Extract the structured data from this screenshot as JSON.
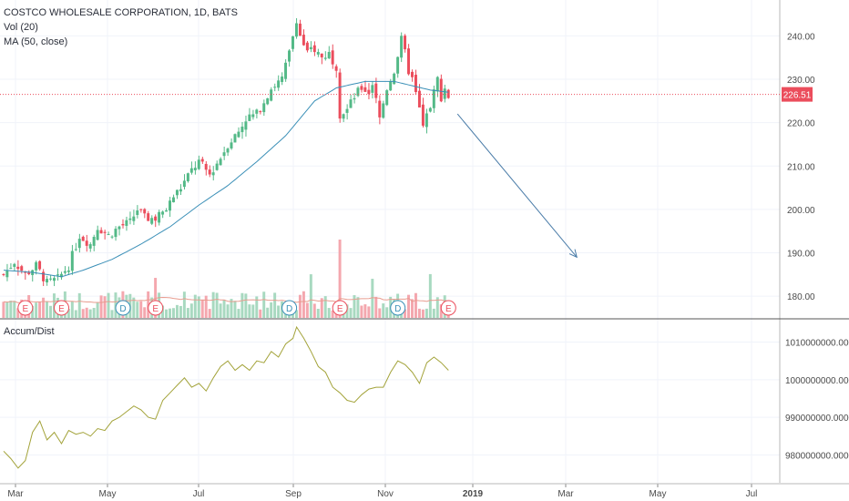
{
  "legend": {
    "title": "COSTCO WHOLESALE CORPORATION, 1D, BATS",
    "volume": "Vol (20)",
    "ma": "MA (50, close)"
  },
  "indicator": {
    "title": "Accum/Dist"
  },
  "last_price_label": "226.51",
  "colors": {
    "up": "#53b987",
    "down": "#eb4d5c",
    "vol_up": "#a8d9c0",
    "vol_down": "#f4a7ae",
    "ma": "#3a8fb7",
    "vol_ma": "#e89c8f",
    "ad_line": "#a3a33a",
    "price_line": "#eb4d5c",
    "arrow": "#4a7ca8",
    "grid": "#f0f3fa",
    "divider": "#555555"
  },
  "chart_data": [
    {
      "type": "candlestick",
      "title": "COSTCO WHOLESALE CORPORATION, 1D, BATS",
      "price_axis": {
        "range": [
          175,
          247
        ],
        "ticks": [
          "180.00",
          "190.00",
          "200.00",
          "210.00",
          "220.00",
          "230.00",
          "240.00"
        ]
      },
      "time_axis": {
        "labels": [
          "Mar",
          "May",
          "Jul",
          "Sep",
          "Nov",
          "2019",
          "Mar",
          "May",
          "Jul"
        ]
      },
      "last_price": 226.51,
      "close_path": [
        [
          0,
          185
        ],
        [
          3,
          188
        ],
        [
          6,
          185
        ],
        [
          9,
          187
        ],
        [
          12,
          183
        ],
        [
          15,
          184
        ],
        [
          18,
          187
        ],
        [
          21,
          194
        ],
        [
          24,
          192
        ],
        [
          26,
          196
        ],
        [
          29,
          194
        ],
        [
          32,
          196
        ],
        [
          35,
          197
        ],
        [
          37,
          200
        ],
        [
          39,
          198
        ],
        [
          42,
          198
        ],
        [
          45,
          200
        ],
        [
          47,
          203
        ],
        [
          49,
          205
        ],
        [
          52,
          209
        ],
        [
          54,
          211
        ],
        [
          57,
          208
        ],
        [
          60,
          212
        ],
        [
          62,
          215
        ],
        [
          65,
          218
        ],
        [
          67,
          221
        ],
        [
          70,
          222
        ],
        [
          72,
          225
        ],
        [
          74,
          228
        ],
        [
          77,
          230
        ],
        [
          79,
          236
        ],
        [
          80,
          240
        ],
        [
          81,
          244
        ],
        [
          82,
          240
        ],
        [
          84,
          236
        ],
        [
          86,
          237
        ],
        [
          88,
          235
        ],
        [
          90,
          236
        ],
        [
          92,
          233
        ],
        [
          93,
          222
        ],
        [
          95,
          223
        ],
        [
          97,
          226
        ],
        [
          99,
          228
        ],
        [
          101,
          227
        ],
        [
          102,
          229
        ],
        [
          104,
          221
        ],
        [
          106,
          228
        ],
        [
          108,
          232
        ],
        [
          110,
          239
        ],
        [
          111,
          236
        ],
        [
          112,
          232
        ],
        [
          113,
          230
        ],
        [
          115,
          223
        ],
        [
          116,
          219
        ],
        [
          118,
          224
        ],
        [
          120,
          230
        ],
        [
          121,
          226
        ],
        [
          122,
          228
        ],
        [
          123,
          226
        ]
      ],
      "ma50_path": [
        [
          0,
          186
        ],
        [
          8,
          185.5
        ],
        [
          16,
          184.5
        ],
        [
          22,
          186
        ],
        [
          30,
          188.5
        ],
        [
          38,
          192
        ],
        [
          46,
          196
        ],
        [
          54,
          201
        ],
        [
          62,
          205.5
        ],
        [
          70,
          211
        ],
        [
          78,
          217
        ],
        [
          86,
          225
        ],
        [
          92,
          228
        ],
        [
          100,
          229.5
        ],
        [
          108,
          229.5
        ],
        [
          113,
          228.5
        ],
        [
          118,
          227.5
        ],
        [
          123,
          227
        ]
      ],
      "earnings_markers": [
        "E",
        "E",
        "D",
        "E",
        "D",
        "E",
        "D",
        "E"
      ],
      "volume": {
        "label": "Vol (20)"
      },
      "forecast_arrow": {
        "from": [
          126,
          222
        ],
        "to": [
          159,
          189
        ]
      }
    },
    {
      "type": "line",
      "title": "Accum/Dist",
      "y_axis": {
        "range": [
          975500000,
          1014000000
        ],
        "ticks": [
          "980000000.0000",
          "990000000.0000",
          "1000000000.0000",
          "1010000000.0000"
        ]
      },
      "points": [
        [
          0,
          981000000
        ],
        [
          2,
          979000000
        ],
        [
          4,
          976500000
        ],
        [
          6,
          978500000
        ],
        [
          8,
          986000000
        ],
        [
          10,
          989000000
        ],
        [
          12,
          984000000
        ],
        [
          14,
          986000000
        ],
        [
          16,
          983000000
        ],
        [
          18,
          986500000
        ],
        [
          20,
          985500000
        ],
        [
          22,
          986000000
        ],
        [
          24,
          985000000
        ],
        [
          26,
          987000000
        ],
        [
          28,
          986500000
        ],
        [
          30,
          989000000
        ],
        [
          32,
          990000000
        ],
        [
          34,
          991500000
        ],
        [
          36,
          993000000
        ],
        [
          38,
          992000000
        ],
        [
          40,
          990000000
        ],
        [
          42,
          989500000
        ],
        [
          44,
          994500000
        ],
        [
          46,
          996500000
        ],
        [
          48,
          998500000
        ],
        [
          50,
          1000500000
        ],
        [
          52,
          998000000
        ],
        [
          54,
          999000000
        ],
        [
          56,
          997000000
        ],
        [
          58,
          1000500000
        ],
        [
          60,
          1003500000
        ],
        [
          62,
          1005000000
        ],
        [
          64,
          1002500000
        ],
        [
          66,
          1004000000
        ],
        [
          68,
          1002500000
        ],
        [
          70,
          1005000000
        ],
        [
          72,
          1004500000
        ],
        [
          74,
          1007500000
        ],
        [
          76,
          1006000000
        ],
        [
          78,
          1009500000
        ],
        [
          80,
          1011000000
        ],
        [
          81,
          1014000000
        ],
        [
          83,
          1011000000
        ],
        [
          85,
          1007500000
        ],
        [
          87,
          1003500000
        ],
        [
          89,
          1002000000
        ],
        [
          91,
          998000000
        ],
        [
          93,
          996500000
        ],
        [
          95,
          994500000
        ],
        [
          97,
          994000000
        ],
        [
          99,
          996000000
        ],
        [
          101,
          997500000
        ],
        [
          103,
          998000000
        ],
        [
          105,
          998000000
        ],
        [
          107,
          1002000000
        ],
        [
          109,
          1005000000
        ],
        [
          111,
          1004000000
        ],
        [
          113,
          1002000000
        ],
        [
          115,
          999000000
        ],
        [
          117,
          1004500000
        ],
        [
          119,
          1006000000
        ],
        [
          121,
          1004500000
        ],
        [
          123,
          1002500000
        ]
      ]
    }
  ]
}
